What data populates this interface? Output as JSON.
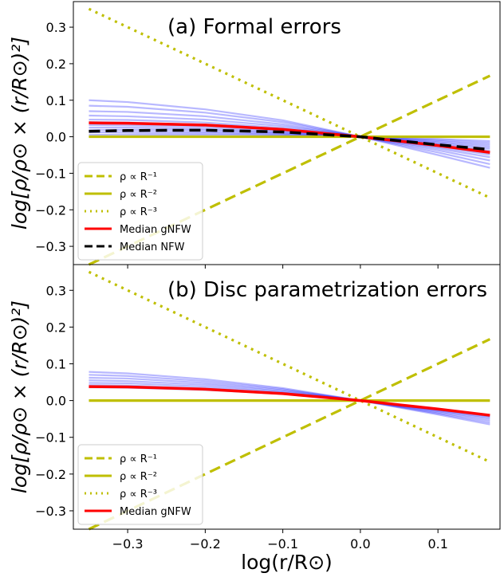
{
  "figure": {
    "ylabel": "log[ρ/ρ⊙ × (r/R⊙)²]",
    "xlabel": "log(r/R⊙)"
  },
  "colors": {
    "yellow": "#bfbf00",
    "red": "#ff0000",
    "blue": "#0000ff",
    "black": "#000000"
  },
  "chart_data": [
    {
      "type": "line",
      "title": "(a) Formal errors",
      "xlim": [
        -0.37,
        0.18
      ],
      "ylim": [
        -0.35,
        0.37
      ],
      "xticks": [
        -0.3,
        -0.2,
        -0.1,
        0.0,
        0.1
      ],
      "yticks": [
        -0.3,
        -0.2,
        -0.1,
        0.0,
        0.1,
        0.2,
        0.3
      ],
      "ytick_labels": [
        "−0.3",
        "−0.2",
        "−0.1",
        "0.0",
        "0.1",
        "0.2",
        "0.3"
      ],
      "xtick_labels": [
        "",
        "",
        "",
        "",
        ""
      ],
      "series": [
        {
          "name": "ρ ∝ R⁻¹",
          "style": "dashed",
          "color": "yellow",
          "x": [
            -0.35,
            0.167
          ],
          "y": [
            -0.35,
            0.167
          ]
        },
        {
          "name": "ρ ∝ R⁻²",
          "style": "solid",
          "color": "yellow",
          "x": [
            -0.35,
            0.167
          ],
          "y": [
            0.0,
            0.0
          ]
        },
        {
          "name": "ρ ∝ R⁻³",
          "style": "dotted",
          "color": "yellow",
          "x": [
            -0.35,
            0.167
          ],
          "y": [
            0.35,
            -0.167
          ]
        },
        {
          "name": "Median gNFW",
          "style": "solid",
          "color": "red",
          "x": [
            -0.35,
            -0.3,
            -0.2,
            -0.1,
            0.0,
            0.1,
            0.167
          ],
          "y": [
            0.038,
            0.037,
            0.032,
            0.02,
            0.0,
            -0.024,
            -0.043
          ]
        },
        {
          "name": "Median NFW",
          "style": "dashed",
          "color": "black",
          "x": [
            -0.35,
            -0.3,
            -0.2,
            -0.1,
            0.0,
            0.1,
            0.167
          ],
          "y": [
            0.015,
            0.017,
            0.018,
            0.013,
            0.0,
            -0.022,
            -0.035
          ]
        }
      ],
      "samples": {
        "color": "blue",
        "x": [
          -0.35,
          -0.3,
          -0.2,
          -0.1,
          0.0,
          0.1,
          0.167
        ],
        "y_sets": [
          [
            0.1,
            0.095,
            0.075,
            0.045,
            0.0,
            -0.05,
            -0.085
          ],
          [
            0.085,
            0.082,
            0.066,
            0.04,
            0.0,
            -0.043,
            -0.075
          ],
          [
            0.07,
            0.068,
            0.056,
            0.034,
            0.0,
            -0.037,
            -0.065
          ],
          [
            0.058,
            0.056,
            0.047,
            0.029,
            0.0,
            -0.032,
            -0.056
          ],
          [
            0.047,
            0.046,
            0.039,
            0.024,
            0.0,
            -0.028,
            -0.049
          ],
          [
            0.04,
            0.039,
            0.033,
            0.021,
            0.0,
            -0.025,
            -0.044
          ],
          [
            0.032,
            0.031,
            0.027,
            0.017,
            0.0,
            -0.021,
            -0.038
          ],
          [
            0.025,
            0.025,
            0.022,
            0.014,
            0.0,
            -0.018,
            -0.032
          ],
          [
            0.018,
            0.019,
            0.018,
            0.011,
            0.0,
            -0.015,
            -0.027
          ],
          [
            0.012,
            0.013,
            0.013,
            0.009,
            0.0,
            -0.012,
            -0.022
          ],
          [
            0.005,
            0.007,
            0.009,
            0.006,
            0.0,
            -0.009,
            -0.017
          ],
          [
            0.0,
            0.002,
            0.005,
            0.004,
            0.0,
            -0.006,
            -0.012
          ]
        ]
      },
      "legend": {
        "placement": "lower-left",
        "entries": [
          {
            "label": "ρ ∝ R⁻¹",
            "style": "dashed",
            "color": "yellow"
          },
          {
            "label": "ρ ∝ R⁻²",
            "style": "solid",
            "color": "yellow"
          },
          {
            "label": "ρ ∝ R⁻³",
            "style": "dotted",
            "color": "yellow"
          },
          {
            "label": "Median gNFW",
            "style": "solid",
            "color": "red"
          },
          {
            "label": "Median NFW",
            "style": "dashed",
            "color": "black"
          }
        ]
      }
    },
    {
      "type": "line",
      "title": "(b) Disc parametrization errors",
      "xlim": [
        -0.37,
        0.18
      ],
      "ylim": [
        -0.35,
        0.37
      ],
      "xticks": [
        -0.3,
        -0.2,
        -0.1,
        0.0,
        0.1
      ],
      "yticks": [
        -0.3,
        -0.2,
        -0.1,
        0.0,
        0.1,
        0.2,
        0.3
      ],
      "ytick_labels": [
        "−0.3",
        "−0.2",
        "−0.1",
        "0.0",
        "0.1",
        "0.2",
        "0.3"
      ],
      "xtick_labels": [
        "−0.3",
        "−0.2",
        "−0.1",
        "0.0",
        "0.1"
      ],
      "series": [
        {
          "name": "ρ ∝ R⁻¹",
          "style": "dashed",
          "color": "yellow",
          "x": [
            -0.35,
            0.167
          ],
          "y": [
            -0.35,
            0.167
          ]
        },
        {
          "name": "ρ ∝ R⁻²",
          "style": "solid",
          "color": "yellow",
          "x": [
            -0.35,
            0.167
          ],
          "y": [
            0.0,
            0.0
          ]
        },
        {
          "name": "ρ ∝ R⁻³",
          "style": "dotted",
          "color": "yellow",
          "x": [
            -0.35,
            0.167
          ],
          "y": [
            0.35,
            -0.167
          ]
        },
        {
          "name": "Median gNFW",
          "style": "solid",
          "color": "red",
          "x": [
            -0.35,
            -0.3,
            -0.2,
            -0.1,
            0.0,
            0.1,
            0.167
          ],
          "y": [
            0.038,
            0.037,
            0.031,
            0.019,
            0.0,
            -0.023,
            -0.04
          ]
        }
      ],
      "samples": {
        "color": "blue",
        "x": [
          -0.35,
          -0.3,
          -0.2,
          -0.1,
          0.0,
          0.1,
          0.167
        ],
        "y_sets": [
          [
            0.078,
            0.074,
            0.058,
            0.034,
            0.0,
            -0.038,
            -0.065
          ],
          [
            0.07,
            0.067,
            0.053,
            0.031,
            0.0,
            -0.035,
            -0.06
          ],
          [
            0.062,
            0.06,
            0.048,
            0.028,
            0.0,
            -0.032,
            -0.055
          ],
          [
            0.055,
            0.053,
            0.043,
            0.025,
            0.0,
            -0.029,
            -0.05
          ],
          [
            0.048,
            0.047,
            0.038,
            0.022,
            0.0,
            -0.027,
            -0.046
          ],
          [
            0.042,
            0.041,
            0.033,
            0.02,
            0.0,
            -0.025,
            -0.043
          ],
          [
            0.036,
            0.035,
            0.029,
            0.018,
            0.0,
            -0.023,
            -0.04
          ]
        ]
      },
      "legend": {
        "placement": "lower-left",
        "entries": [
          {
            "label": "ρ ∝ R⁻¹",
            "style": "dashed",
            "color": "yellow"
          },
          {
            "label": "ρ ∝ R⁻²",
            "style": "solid",
            "color": "yellow"
          },
          {
            "label": "ρ ∝ R⁻³",
            "style": "dotted",
            "color": "yellow"
          },
          {
            "label": "Median gNFW",
            "style": "solid",
            "color": "red"
          }
        ]
      }
    }
  ]
}
